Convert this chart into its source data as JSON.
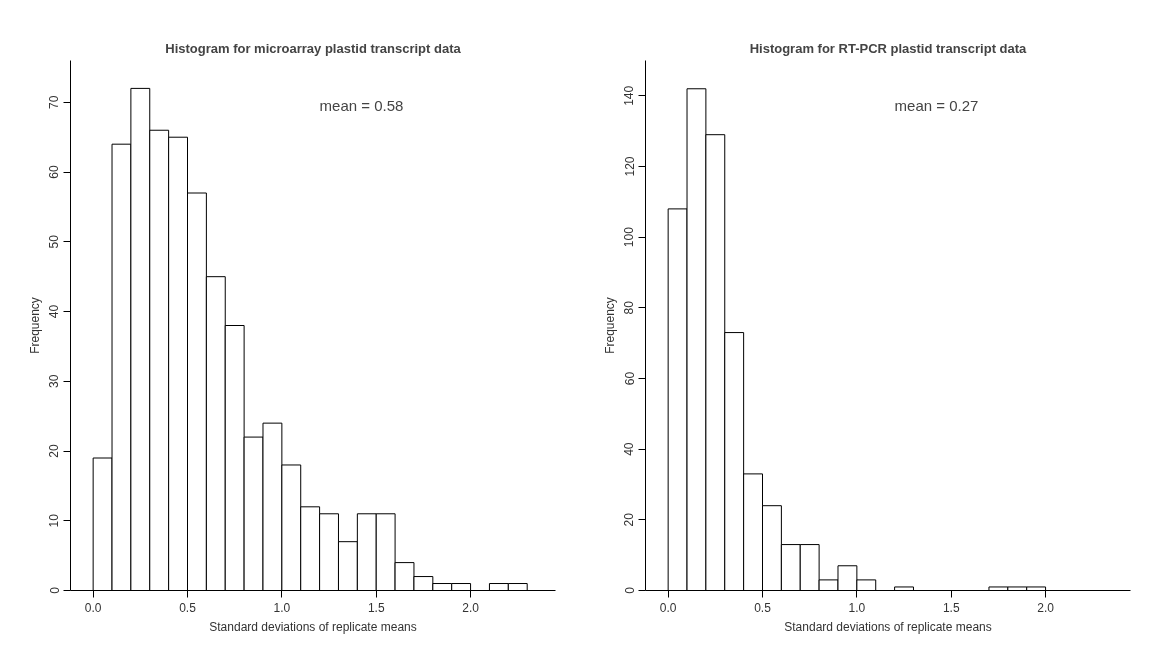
{
  "chart_data": [
    {
      "type": "histogram",
      "title": "Histogram for microarray plastid transcript data",
      "xlabel": "Standard deviations of replicate means",
      "ylabel": "Frequency",
      "annotations": [
        "mean = 0.58"
      ],
      "grid": false,
      "bins": [
        0,
        0.1,
        0.2,
        0.3,
        0.4,
        0.5,
        0.6,
        0.7,
        0.8,
        0.9,
        1.0,
        1.1,
        1.2,
        1.3,
        1.4,
        1.5,
        1.6,
        1.7,
        1.8,
        1.9,
        2.0,
        2.1,
        2.2,
        2.3,
        2.4
      ],
      "values": [
        19,
        64,
        72,
        66,
        65,
        57,
        45,
        38,
        22,
        24,
        18,
        12,
        11,
        7,
        11,
        11,
        4,
        2,
        1,
        1,
        0,
        1,
        1,
        0
      ],
      "xlim": [
        -0.12,
        2.45
      ],
      "ylim": [
        0,
        76
      ],
      "xticks": [
        {
          "value": 0,
          "label": "0.0"
        },
        {
          "value": 0.5,
          "label": "0.5"
        },
        {
          "value": 1,
          "label": "1.0"
        },
        {
          "value": 1.5,
          "label": "1.5"
        },
        {
          "value": 2,
          "label": "2.0"
        }
      ],
      "yticks": [
        0,
        10,
        20,
        30,
        40,
        50,
        60,
        70
      ]
    },
    {
      "type": "histogram",
      "title": "Histogram for RT-PCR plastid transcript data",
      "xlabel": "Standard deviations of replicate means",
      "ylabel": "Frequency",
      "annotations": [
        "mean = 0.27"
      ],
      "grid": false,
      "bins": [
        0,
        0.1,
        0.2,
        0.3,
        0.4,
        0.5,
        0.6,
        0.7,
        0.8,
        0.9,
        1.0,
        1.1,
        1.2,
        1.3,
        1.4,
        1.5,
        1.6,
        1.7,
        1.8,
        1.9,
        2.0,
        2.1,
        2.2,
        2.3,
        2.4
      ],
      "values": [
        108,
        142,
        129,
        73,
        33,
        24,
        13,
        13,
        3,
        7,
        3,
        0,
        1,
        0,
        0,
        0,
        0,
        1,
        1,
        1,
        0,
        0,
        0,
        0
      ],
      "xlim": [
        -0.12,
        2.45
      ],
      "ylim": [
        0,
        150
      ],
      "xticks": [
        {
          "value": 0,
          "label": "0.0"
        },
        {
          "value": 0.5,
          "label": "0.5"
        },
        {
          "value": 1,
          "label": "1.0"
        },
        {
          "value": 1.5,
          "label": "1.5"
        },
        {
          "value": 2,
          "label": "2.0"
        }
      ],
      "yticks": [
        0,
        20,
        40,
        60,
        80,
        100,
        120,
        140
      ]
    }
  ]
}
